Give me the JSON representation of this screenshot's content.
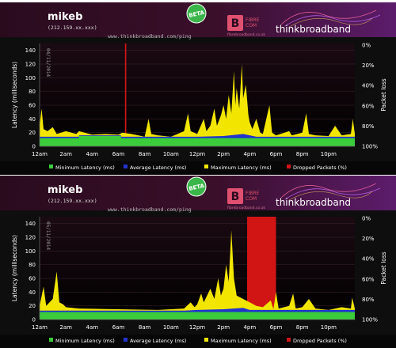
{
  "brand": {
    "beta": "BETA",
    "site": "thinkbroadband",
    "fibre_top": "FIBRE",
    "fibre_bottom": "COM",
    "fibre_sub": "fibrebroadband.co.uk"
  },
  "colors": {
    "min_latency": "#3bcc3b",
    "avg_latency": "#2233cc",
    "max_latency": "#f2e600",
    "dropped": "#d11515",
    "header_left": "#2a0b1e",
    "header_right": "#5c1c6b",
    "beta_badge": "#3ab54a"
  },
  "panels": [
    {
      "user": "mikeb",
      "ip": "(212.159.xx.xxx)",
      "url": "www.thinkbroadband.com/ping",
      "date": "04/11/2014",
      "legend": [
        "Minimum Latency (ms)",
        "Average Latency (ms)",
        "Maximum Latency (ms)",
        "Dropped Packets (%)"
      ]
    },
    {
      "user": "mikeb",
      "ip": "(212.159.xx.xxx)",
      "url": "www.thinkbroadband.com/ping",
      "date": "05/11/2014",
      "legend": [
        "Minimum Latency (ms)",
        "Average Latency (ms)",
        "Maximum Latency (ms)",
        "Dropped Packets (%)"
      ]
    }
  ],
  "chart_data": [
    {
      "type": "area",
      "ylabel": "Latency (milliseconds)",
      "y2label": "Packet loss",
      "ylim": [
        0,
        150
      ],
      "yticks": [
        0,
        20,
        40,
        60,
        80,
        100,
        120,
        140
      ],
      "y2ticks": [
        "0%",
        "20%",
        "40%",
        "60%",
        "80%",
        "100%"
      ],
      "x_ticks": [
        "12am",
        "2am",
        "4am",
        "6am",
        "8am",
        "10am",
        "12pm",
        "2pm",
        "4pm",
        "6pm",
        "8pm",
        "10pm"
      ],
      "x_range_hours": [
        0,
        24
      ],
      "series": [
        {
          "name": "Minimum Latency (ms)",
          "points": [
            [
              0,
              12
            ],
            [
              3,
              12
            ],
            [
              3,
              15
            ],
            [
              6.2,
              15
            ],
            [
              6.2,
              12
            ],
            [
              24,
              12
            ]
          ]
        },
        {
          "name": "Average Latency (ms)",
          "points": [
            [
              0,
              14
            ],
            [
              3,
              14
            ],
            [
              3,
              16
            ],
            [
              6.2,
              16
            ],
            [
              6.2,
              14
            ],
            [
              12,
              14
            ],
            [
              14,
              15
            ],
            [
              15.5,
              18
            ],
            [
              16.5,
              14
            ],
            [
              24,
              14
            ]
          ]
        },
        {
          "name": "Maximum Latency (ms)",
          "points": [
            [
              0,
              30
            ],
            [
              0.15,
              55
            ],
            [
              0.3,
              25
            ],
            [
              0.6,
              22
            ],
            [
              1,
              28
            ],
            [
              1.3,
              18
            ],
            [
              2,
              22
            ],
            [
              2.8,
              18
            ],
            [
              3,
              22
            ],
            [
              4,
              17
            ],
            [
              5,
              18
            ],
            [
              6,
              17
            ],
            [
              6.3,
              20
            ],
            [
              7,
              18
            ],
            [
              8,
              14
            ],
            [
              8.3,
              40
            ],
            [
              8.5,
              18
            ],
            [
              9,
              16
            ],
            [
              10,
              14
            ],
            [
              11,
              22
            ],
            [
              11.3,
              48
            ],
            [
              11.5,
              22
            ],
            [
              12,
              18
            ],
            [
              12.5,
              40
            ],
            [
              12.7,
              22
            ],
            [
              13,
              30
            ],
            [
              13.3,
              55
            ],
            [
              13.5,
              30
            ],
            [
              13.8,
              45
            ],
            [
              14,
              60
            ],
            [
              14.2,
              40
            ],
            [
              14.4,
              75
            ],
            [
              14.6,
              48
            ],
            [
              14.8,
              110
            ],
            [
              14.9,
              60
            ],
            [
              15,
              85
            ],
            [
              15.2,
              55
            ],
            [
              15.4,
              120
            ],
            [
              15.5,
              70
            ],
            [
              15.7,
              90
            ],
            [
              15.9,
              45
            ],
            [
              16,
              35
            ],
            [
              16.2,
              25
            ],
            [
              16.5,
              40
            ],
            [
              16.8,
              20
            ],
            [
              17,
              18
            ],
            [
              17.5,
              60
            ],
            [
              17.7,
              20
            ],
            [
              18,
              16
            ],
            [
              19,
              22
            ],
            [
              19.2,
              16
            ],
            [
              20,
              20
            ],
            [
              20.3,
              48
            ],
            [
              20.5,
              18
            ],
            [
              21,
              16
            ],
            [
              22,
              15
            ],
            [
              22.5,
              30
            ],
            [
              23,
              16
            ],
            [
              23.7,
              18
            ],
            [
              23.85,
              40
            ],
            [
              24,
              18
            ]
          ]
        },
        {
          "name": "Dropped Packets (%)",
          "spans_hours": [
            [
              6.5,
              6.6
            ]
          ]
        }
      ]
    },
    {
      "type": "area",
      "ylabel": "Latency (milliseconds)",
      "y2label": "Packet loss",
      "ylim": [
        0,
        150
      ],
      "yticks": [
        0,
        20,
        40,
        60,
        80,
        100,
        120,
        140
      ],
      "y2ticks": [
        "0%",
        "20%",
        "40%",
        "60%",
        "80%",
        "100%"
      ],
      "x_ticks": [
        "12am",
        "2am",
        "4am",
        "6am",
        "8am",
        "10am",
        "12pm",
        "2pm",
        "4pm",
        "6pm",
        "8pm",
        "10pm"
      ],
      "x_range_hours": [
        0,
        24
      ],
      "series": [
        {
          "name": "Minimum Latency (ms)",
          "points": [
            [
              0,
              11
            ],
            [
              24,
              11
            ]
          ]
        },
        {
          "name": "Average Latency (ms)",
          "points": [
            [
              0,
              13
            ],
            [
              11,
              13
            ],
            [
              12,
              14
            ],
            [
              14,
              15
            ],
            [
              15.5,
              17
            ],
            [
              16,
              14
            ],
            [
              24,
              14
            ]
          ]
        },
        {
          "name": "Maximum Latency (ms)",
          "points": [
            [
              0,
              20
            ],
            [
              0.3,
              48
            ],
            [
              0.5,
              20
            ],
            [
              1,
              30
            ],
            [
              1.3,
              70
            ],
            [
              1.5,
              25
            ],
            [
              1.8,
              22
            ],
            [
              2,
              18
            ],
            [
              3,
              16
            ],
            [
              6,
              15
            ],
            [
              9,
              14
            ],
            [
              10,
              15
            ],
            [
              11,
              16
            ],
            [
              11.5,
              25
            ],
            [
              11.8,
              18
            ],
            [
              12,
              22
            ],
            [
              12.3,
              38
            ],
            [
              12.5,
              25
            ],
            [
              13,
              45
            ],
            [
              13.3,
              30
            ],
            [
              13.6,
              60
            ],
            [
              13.8,
              35
            ],
            [
              14,
              45
            ],
            [
              14.2,
              80
            ],
            [
              14.4,
              55
            ],
            [
              14.6,
              130
            ],
            [
              14.8,
              60
            ],
            [
              15,
              35
            ],
            [
              15.5,
              30
            ],
            [
              16,
              25
            ],
            [
              16.5,
              20
            ],
            [
              17,
              18
            ],
            [
              17.6,
              28
            ],
            [
              17.8,
              15
            ],
            [
              18,
              40
            ],
            [
              18.2,
              16
            ],
            [
              19,
              20
            ],
            [
              19.3,
              38
            ],
            [
              19.5,
              16
            ],
            [
              20,
              18
            ],
            [
              20.5,
              30
            ],
            [
              21,
              16
            ],
            [
              22,
              14
            ],
            [
              23,
              18
            ],
            [
              23.7,
              16
            ],
            [
              23.8,
              32
            ],
            [
              24,
              16
            ]
          ]
        },
        {
          "name": "Dropped Packets (%)",
          "spans_hours": [
            [
              15.8,
              18.0
            ]
          ]
        }
      ]
    }
  ]
}
